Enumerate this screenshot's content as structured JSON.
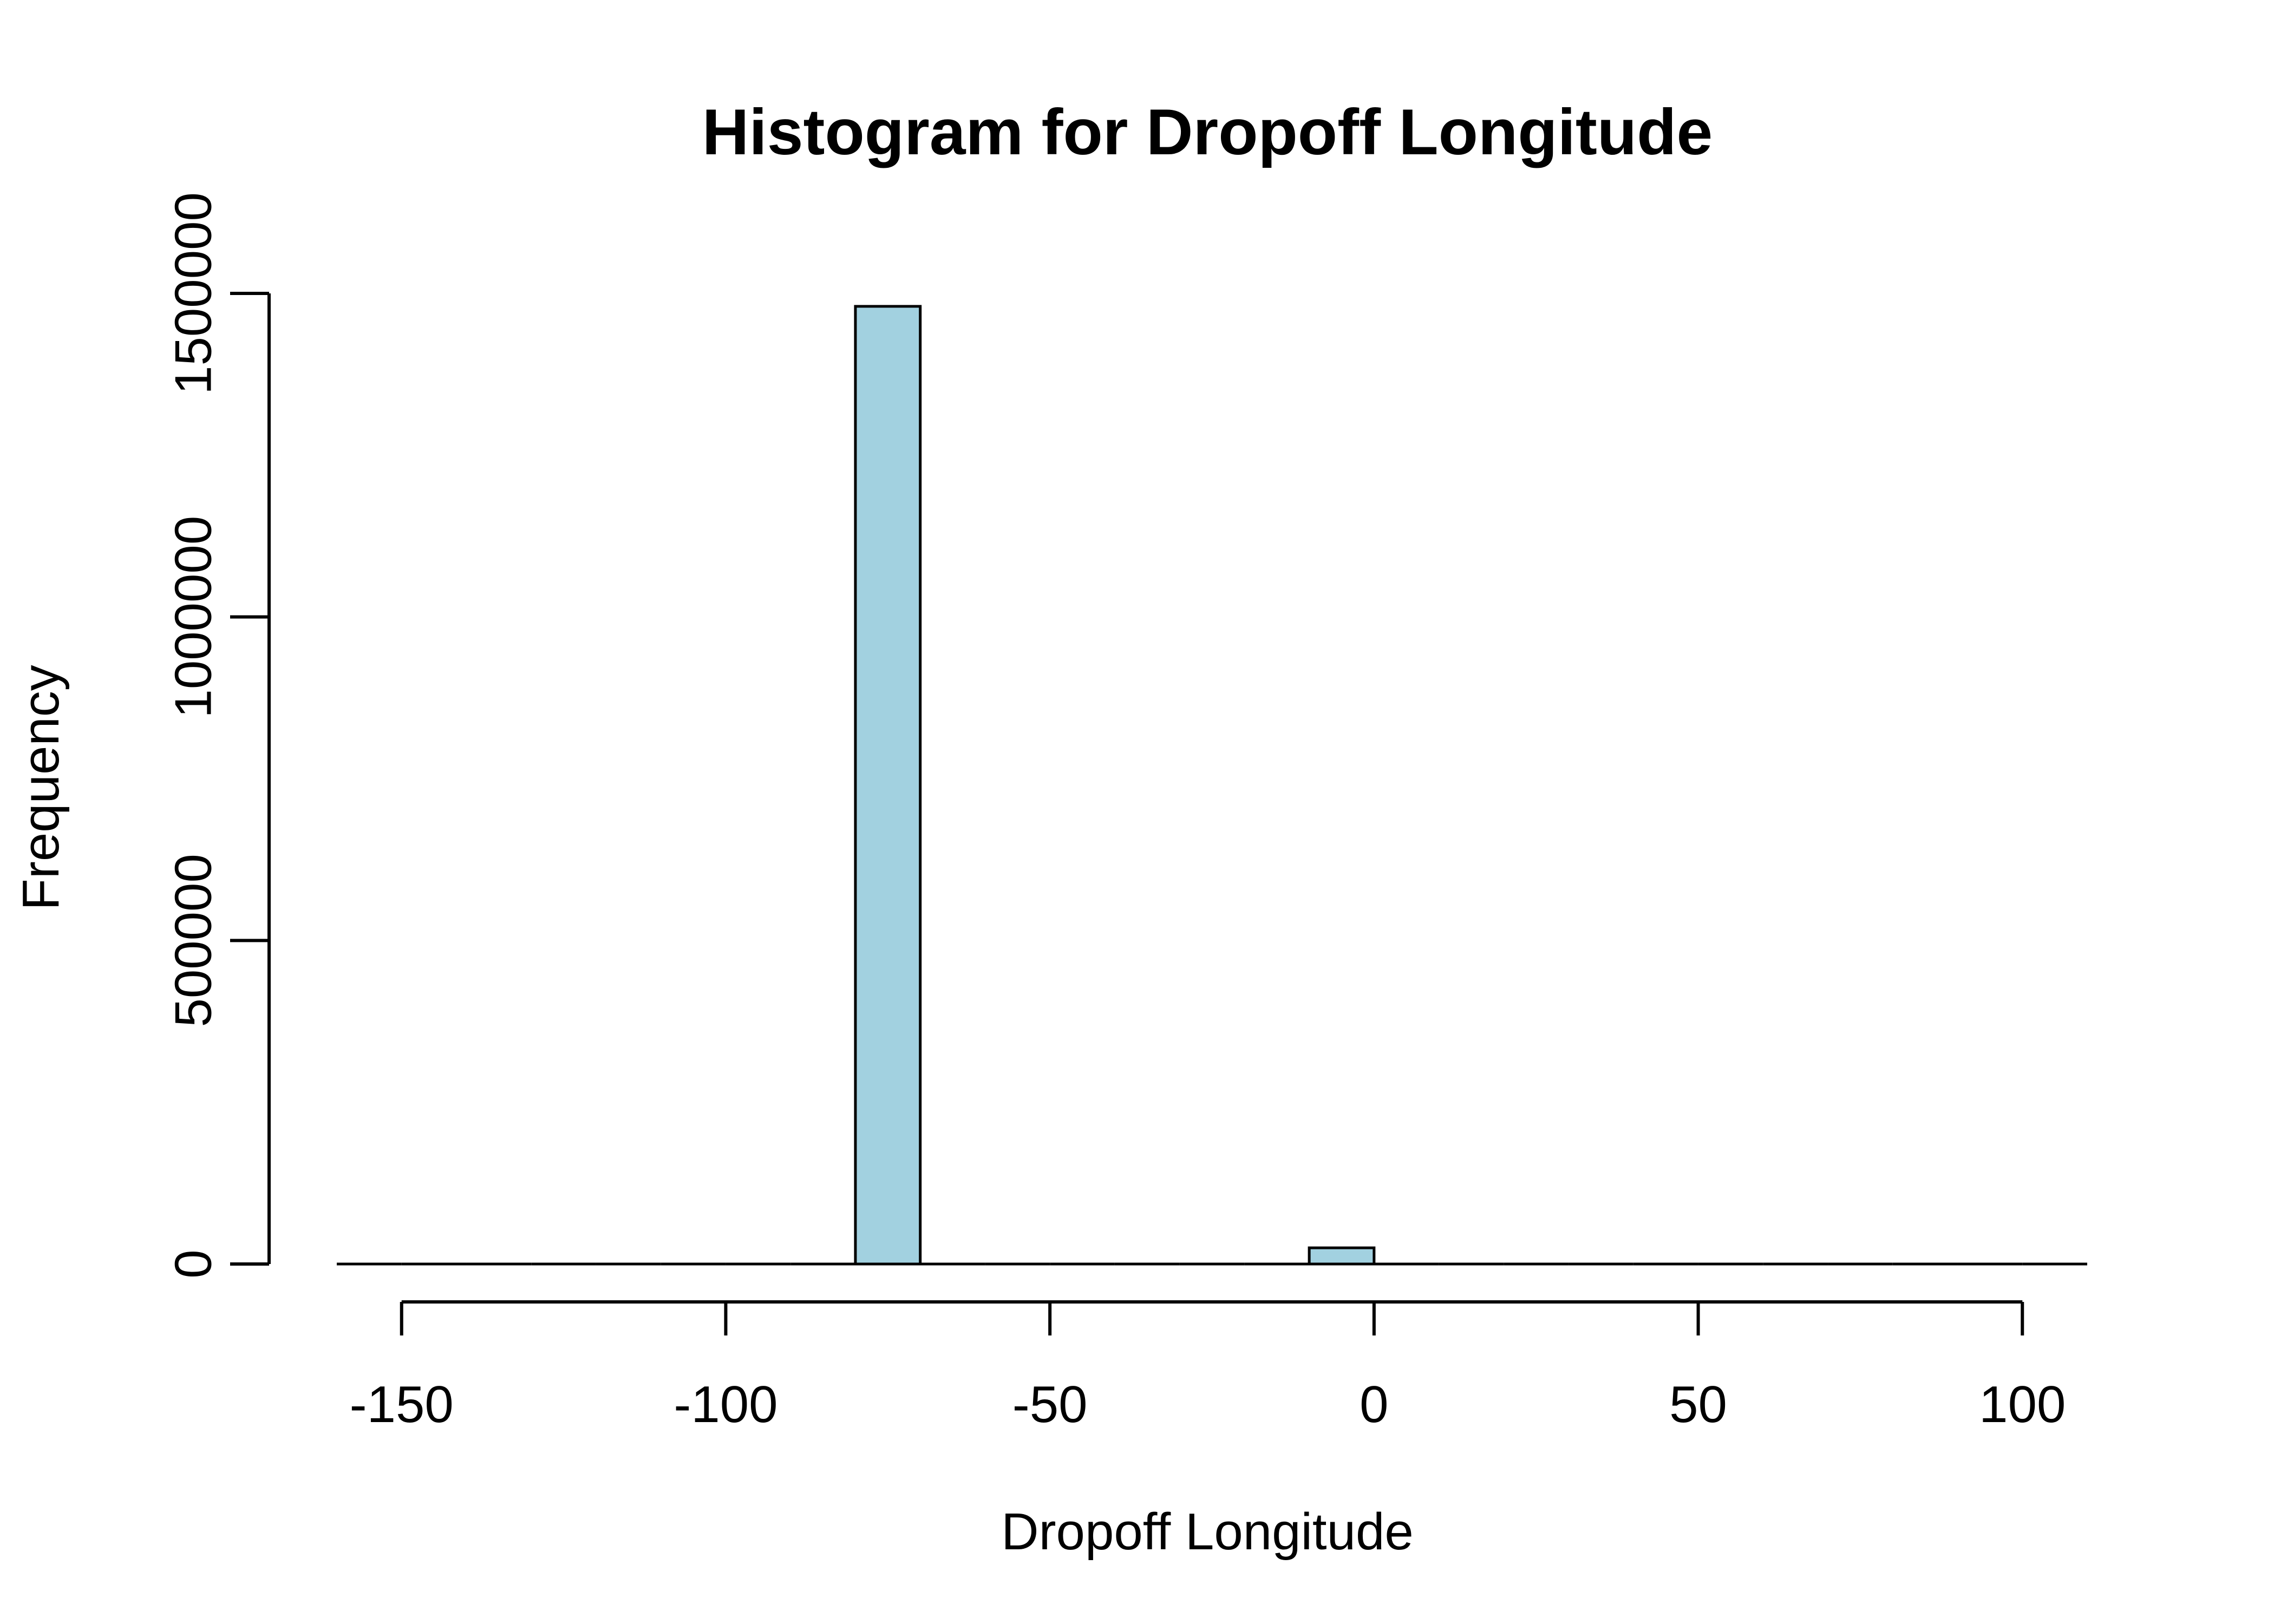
{
  "chart_data": {
    "type": "bar",
    "title": "Histogram for Dropoff Longitude",
    "xlabel": "Dropoff Longitude",
    "ylabel": "Frequency",
    "bin_width": 10,
    "bins": [
      {
        "start": -160,
        "end": -150,
        "count": 0
      },
      {
        "start": -150,
        "end": -140,
        "count": 0
      },
      {
        "start": -140,
        "end": -130,
        "count": 0
      },
      {
        "start": -130,
        "end": -120,
        "count": 0
      },
      {
        "start": -120,
        "end": -110,
        "count": 0
      },
      {
        "start": -110,
        "end": -100,
        "count": 0
      },
      {
        "start": -100,
        "end": -90,
        "count": 0
      },
      {
        "start": -90,
        "end": -80,
        "count": 0
      },
      {
        "start": -80,
        "end": -70,
        "count": 1480000
      },
      {
        "start": -70,
        "end": -60,
        "count": 0
      },
      {
        "start": -60,
        "end": -50,
        "count": 0
      },
      {
        "start": -50,
        "end": -40,
        "count": 0
      },
      {
        "start": -40,
        "end": -30,
        "count": 0
      },
      {
        "start": -30,
        "end": -20,
        "count": 0
      },
      {
        "start": -20,
        "end": -10,
        "count": 0
      },
      {
        "start": -10,
        "end": 0,
        "count": 25000
      },
      {
        "start": 0,
        "end": 10,
        "count": 0
      },
      {
        "start": 10,
        "end": 20,
        "count": 0
      },
      {
        "start": 20,
        "end": 30,
        "count": 0
      },
      {
        "start": 30,
        "end": 40,
        "count": 0
      },
      {
        "start": 40,
        "end": 50,
        "count": 0
      },
      {
        "start": 50,
        "end": 60,
        "count": 0
      },
      {
        "start": 60,
        "end": 70,
        "count": 0
      },
      {
        "start": 70,
        "end": 80,
        "count": 0
      },
      {
        "start": 80,
        "end": 90,
        "count": 0
      },
      {
        "start": 90,
        "end": 100,
        "count": 0
      },
      {
        "start": 100,
        "end": 110,
        "count": 0
      }
    ],
    "xlim": [
      -160,
      110
    ],
    "ylim": [
      0,
      1500000
    ],
    "x_ticks": [
      -150,
      -100,
      -50,
      0,
      50,
      100
    ],
    "x_tick_labels": [
      "-150",
      "-100",
      "-50",
      "0",
      "50",
      "100"
    ],
    "y_ticks": [
      0,
      500000,
      1000000,
      1500000
    ],
    "y_tick_labels": [
      "0",
      "500000",
      "1000000",
      "1500000"
    ],
    "bar_color": "#a2d1e0",
    "edge_color": "#000000",
    "grid": false,
    "legend": "none"
  }
}
